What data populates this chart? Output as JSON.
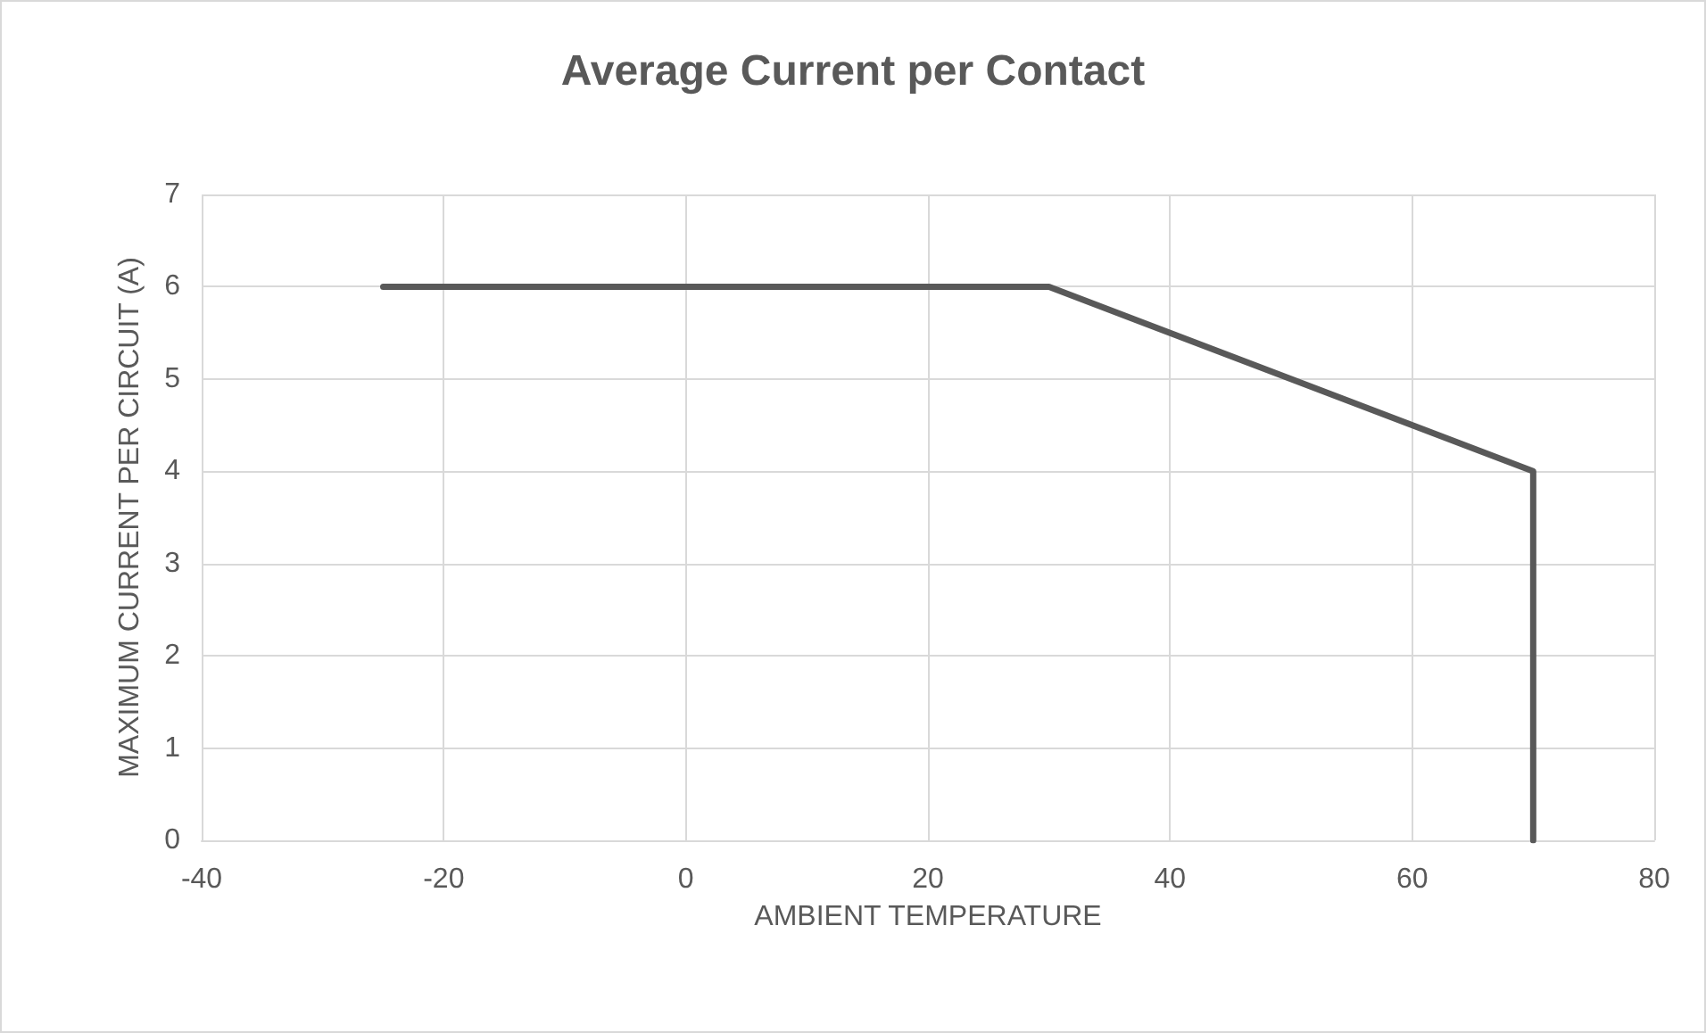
{
  "chart_data": {
    "type": "line",
    "title": "Average Current per Contact",
    "xlabel": "AMBIENT TEMPERATURE",
    "ylabel": "MAXIMUM CURRENT PER CIRCUIT (A)",
    "series": [
      {
        "color": "#595959",
        "x": [
          -25,
          30,
          70,
          70
        ],
        "values": [
          6,
          6,
          4,
          0
        ]
      }
    ],
    "xlim": [
      -40,
      80
    ],
    "xticks": [
      -40,
      -20,
      0,
      20,
      40,
      60,
      80
    ],
    "ylim": [
      0,
      7
    ],
    "yticks": [
      0,
      1,
      2,
      3,
      4,
      5,
      6,
      7
    ],
    "grid": true,
    "marker": "none",
    "line_style": "solid"
  }
}
